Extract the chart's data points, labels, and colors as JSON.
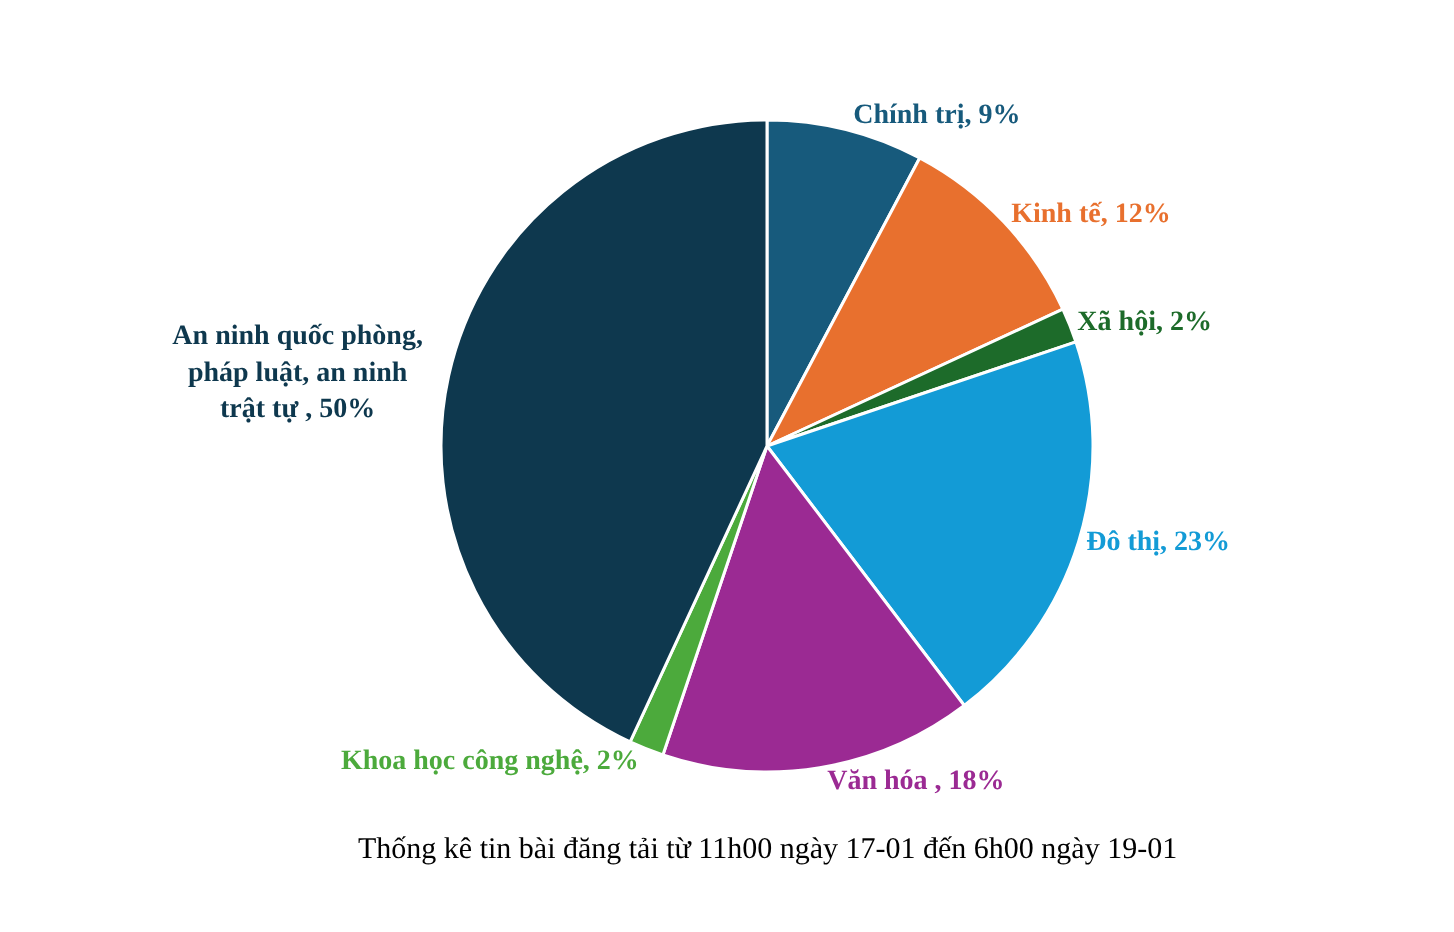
{
  "chart_data": {
    "type": "pie",
    "categories": [
      "Chính trị",
      "Kinh tế",
      "Xã hội",
      "Đô thị",
      "Văn hóa ",
      "Khoa học công nghệ",
      "An ninh quốc phòng, pháp luật, an ninh trật tự "
    ],
    "values": [
      9,
      12,
      2,
      23,
      18,
      2,
      50
    ],
    "value_labels": [
      "9%",
      "12%",
      "2%",
      "23%",
      "18%",
      "2%",
      "50%"
    ],
    "colors": [
      "#175a7c",
      "#e8702e",
      "#1d6b2a",
      "#139bd6",
      "#9b2a93",
      "#4caa3c",
      "#0e384e"
    ],
    "legend": false,
    "annotations": [
      "Thống kê tin bài đăng tải từ 11h00 ngày 17-01 đến 6h00 ngày 19-01"
    ]
  }
}
